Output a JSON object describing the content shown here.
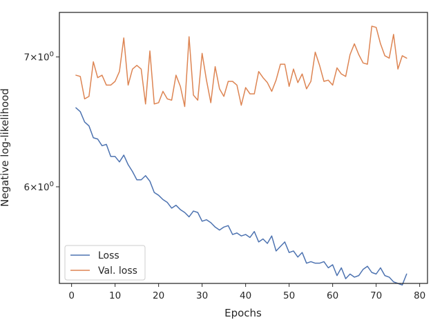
{
  "chart_data": {
    "type": "line",
    "title": "",
    "xlabel": "Epochs",
    "ylabel": "Negative log-likelihood",
    "yscale": "log",
    "xlim": [
      -2.8,
      81.8
    ],
    "ylim": [
      5.35,
      7.38
    ],
    "xticks": [
      0,
      10,
      20,
      30,
      40,
      50,
      60,
      70,
      80
    ],
    "yticks": [
      {
        "value": 6,
        "mantissa": "6",
        "base": "10",
        "exp": "0"
      },
      {
        "value": 7,
        "mantissa": "7",
        "base": "10",
        "exp": "0"
      }
    ],
    "grid": false,
    "legend_location": "lower-left",
    "x": [
      1,
      2,
      3,
      4,
      5,
      6,
      7,
      8,
      9,
      10,
      11,
      12,
      13,
      14,
      15,
      16,
      17,
      18,
      19,
      20,
      21,
      22,
      23,
      24,
      25,
      26,
      27,
      28,
      29,
      30,
      31,
      32,
      33,
      34,
      35,
      36,
      37,
      38,
      39,
      40,
      41,
      42,
      43,
      44,
      45,
      46,
      47,
      48,
      49,
      50,
      51,
      52,
      53,
      54,
      55,
      56,
      57,
      58,
      59,
      60,
      61,
      62,
      63,
      64,
      65,
      66,
      67,
      68,
      69,
      70,
      71,
      72,
      73,
      74,
      75,
      76,
      77
    ],
    "series": [
      {
        "name": "Loss",
        "color": "#4c72b0",
        "values": [
          6.59,
          6.56,
          6.48,
          6.45,
          6.36,
          6.35,
          6.3,
          6.31,
          6.22,
          6.22,
          6.18,
          6.23,
          6.16,
          6.11,
          6.05,
          6.05,
          6.08,
          6.04,
          5.96,
          5.94,
          5.91,
          5.89,
          5.85,
          5.87,
          5.84,
          5.82,
          5.79,
          5.83,
          5.82,
          5.76,
          5.77,
          5.75,
          5.72,
          5.7,
          5.72,
          5.73,
          5.67,
          5.68,
          5.66,
          5.67,
          5.65,
          5.69,
          5.62,
          5.64,
          5.61,
          5.66,
          5.56,
          5.59,
          5.62,
          5.55,
          5.56,
          5.52,
          5.55,
          5.48,
          5.49,
          5.48,
          5.48,
          5.49,
          5.45,
          5.47,
          5.4,
          5.45,
          5.38,
          5.41,
          5.39,
          5.4,
          5.44,
          5.46,
          5.42,
          5.41,
          5.45,
          5.4,
          5.39,
          5.36,
          5.35,
          5.34,
          5.41
        ]
      },
      {
        "name": "Val. loss",
        "color": "#dd8452",
        "values": [
          6.85,
          6.84,
          6.66,
          6.68,
          6.96,
          6.83,
          6.85,
          6.77,
          6.77,
          6.8,
          6.88,
          7.16,
          6.77,
          6.9,
          6.93,
          6.9,
          6.62,
          7.05,
          6.62,
          6.63,
          6.72,
          6.66,
          6.65,
          6.85,
          6.76,
          6.6,
          7.17,
          6.69,
          6.65,
          7.03,
          6.81,
          6.63,
          6.92,
          6.74,
          6.68,
          6.8,
          6.8,
          6.77,
          6.61,
          6.75,
          6.7,
          6.7,
          6.88,
          6.83,
          6.79,
          6.72,
          6.81,
          6.94,
          6.94,
          6.76,
          6.9,
          6.79,
          6.86,
          6.74,
          6.8,
          7.04,
          6.93,
          6.8,
          6.81,
          6.77,
          6.91,
          6.86,
          6.84,
          7.02,
          7.11,
          7.02,
          6.95,
          6.94,
          7.26,
          7.25,
          7.11,
          7.01,
          6.99,
          7.19,
          6.9,
          7.01,
          6.99
        ]
      }
    ]
  }
}
